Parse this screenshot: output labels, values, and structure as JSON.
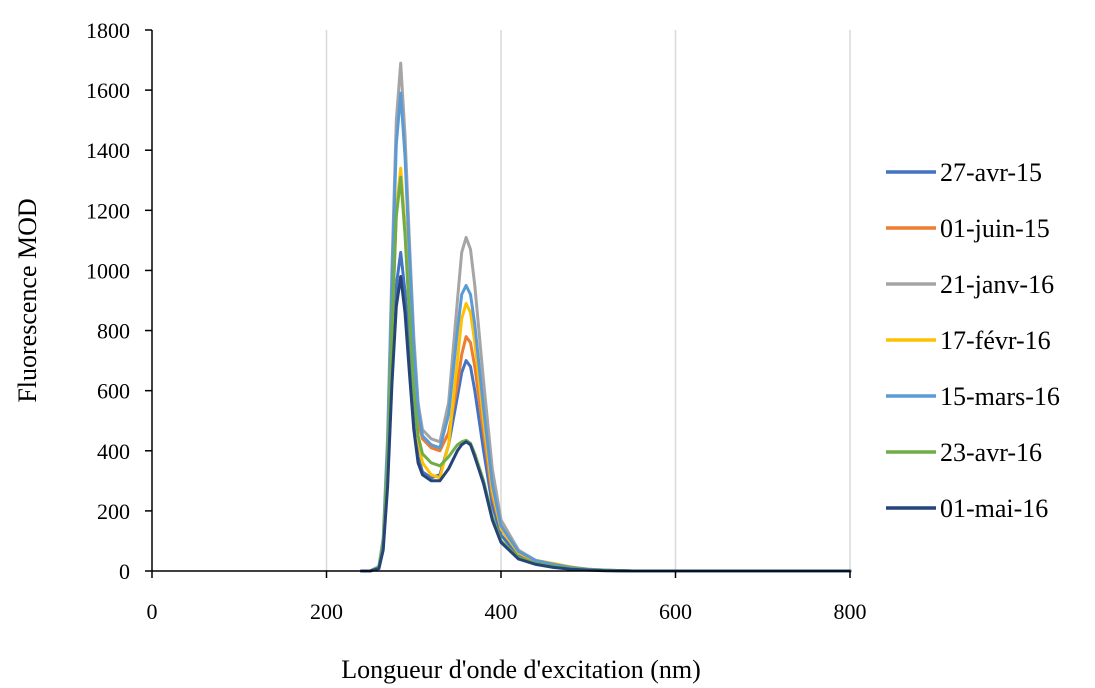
{
  "chart_data": {
    "type": "line",
    "title": "",
    "xlabel": "Longueur d'onde d'excitation (nm)",
    "ylabel": "Fluorescence MOD",
    "xlim": [
      0,
      800
    ],
    "ylim": [
      0,
      1800
    ],
    "xticks": [
      0,
      200,
      400,
      600,
      800
    ],
    "yticks": [
      0,
      200,
      400,
      600,
      800,
      1000,
      1200,
      1400,
      1600,
      1800
    ],
    "grid": "vertical",
    "legend_position": "right",
    "series": [
      {
        "name": "27-avr-15",
        "color": "#4472C4",
        "x": [
          240,
          250,
          260,
          265,
          270,
          275,
          280,
          285,
          290,
          295,
          300,
          305,
          310,
          320,
          330,
          340,
          350,
          355,
          360,
          365,
          370,
          380,
          390,
          400,
          420,
          440,
          460,
          480,
          500,
          520,
          550,
          600,
          650,
          700,
          800
        ],
        "y": [
          0,
          0,
          10,
          80,
          300,
          650,
          950,
          1060,
          930,
          720,
          500,
          380,
          330,
          310,
          320,
          420,
          580,
          660,
          700,
          680,
          600,
          400,
          220,
          120,
          50,
          25,
          15,
          8,
          4,
          2,
          0,
          0,
          0,
          0,
          0
        ]
      },
      {
        "name": "01-juin-15",
        "color": "#ED7D31",
        "x": [
          240,
          250,
          260,
          265,
          270,
          275,
          280,
          285,
          290,
          295,
          300,
          305,
          310,
          320,
          330,
          340,
          350,
          355,
          360,
          365,
          370,
          380,
          390,
          400,
          420,
          440,
          460,
          480,
          500,
          520,
          550,
          600,
          650,
          700,
          800
        ],
        "y": [
          0,
          0,
          10,
          90,
          350,
          800,
          1200,
          1310,
          1150,
          900,
          650,
          500,
          440,
          410,
          400,
          460,
          620,
          720,
          780,
          760,
          680,
          460,
          250,
          140,
          60,
          30,
          20,
          10,
          5,
          2,
          0,
          0,
          0,
          0,
          0
        ]
      },
      {
        "name": "21-janv-16",
        "color": "#A5A5A5",
        "x": [
          240,
          250,
          260,
          265,
          270,
          275,
          280,
          285,
          290,
          295,
          300,
          305,
          310,
          320,
          330,
          340,
          350,
          355,
          360,
          365,
          370,
          380,
          390,
          400,
          420,
          440,
          460,
          480,
          500,
          520,
          550,
          600,
          650,
          700,
          800
        ],
        "y": [
          0,
          0,
          15,
          110,
          450,
          1000,
          1500,
          1690,
          1450,
          1100,
          780,
          560,
          470,
          440,
          430,
          560,
          900,
          1060,
          1110,
          1070,
          950,
          630,
          340,
          170,
          70,
          35,
          25,
          12,
          6,
          3,
          0,
          0,
          0,
          0,
          0
        ]
      },
      {
        "name": "17-févr-16",
        "color": "#FFC000",
        "x": [
          240,
          250,
          260,
          265,
          270,
          275,
          280,
          285,
          290,
          295,
          300,
          305,
          310,
          320,
          330,
          340,
          350,
          355,
          360,
          365,
          370,
          380,
          390,
          400,
          420,
          440,
          460,
          480,
          500,
          520,
          550,
          600,
          650,
          700,
          800
        ],
        "y": [
          0,
          0,
          12,
          90,
          360,
          800,
          1200,
          1340,
          1150,
          880,
          620,
          440,
          360,
          320,
          310,
          420,
          700,
          840,
          890,
          860,
          760,
          500,
          270,
          140,
          60,
          35,
          25,
          14,
          6,
          3,
          0,
          0,
          0,
          0,
          0
        ]
      },
      {
        "name": "15-mars-16",
        "color": "#5B9BD5",
        "x": [
          240,
          250,
          260,
          265,
          270,
          275,
          280,
          285,
          290,
          295,
          300,
          305,
          310,
          320,
          330,
          340,
          350,
          355,
          360,
          365,
          370,
          380,
          390,
          400,
          420,
          440,
          460,
          480,
          500,
          520,
          550,
          600,
          650,
          700,
          800
        ],
        "y": [
          0,
          0,
          14,
          100,
          420,
          950,
          1420,
          1590,
          1380,
          1050,
          740,
          540,
          450,
          420,
          410,
          520,
          800,
          920,
          950,
          920,
          820,
          540,
          290,
          150,
          65,
          35,
          22,
          12,
          6,
          3,
          0,
          0,
          0,
          0,
          0
        ]
      },
      {
        "name": "23-avr-16",
        "color": "#70AD47",
        "x": [
          240,
          250,
          260,
          265,
          270,
          275,
          280,
          285,
          290,
          295,
          300,
          305,
          310,
          320,
          330,
          340,
          350,
          355,
          360,
          365,
          370,
          380,
          390,
          400,
          420,
          440,
          460,
          480,
          500,
          520,
          550,
          600,
          650,
          700,
          800
        ],
        "y": [
          0,
          0,
          12,
          90,
          360,
          800,
          1180,
          1310,
          1120,
          850,
          600,
          450,
          390,
          360,
          350,
          380,
          420,
          430,
          435,
          425,
          390,
          300,
          180,
          100,
          45,
          25,
          15,
          8,
          4,
          2,
          0,
          0,
          0,
          0,
          0
        ]
      },
      {
        "name": "01-mai-16",
        "color": "#264478",
        "x": [
          240,
          250,
          260,
          265,
          270,
          275,
          280,
          285,
          290,
          295,
          300,
          305,
          310,
          320,
          330,
          340,
          350,
          355,
          360,
          365,
          370,
          380,
          390,
          400,
          420,
          440,
          460,
          480,
          500,
          520,
          550,
          600,
          650,
          700,
          800
        ],
        "y": [
          0,
          0,
          8,
          70,
          280,
          620,
          880,
          980,
          860,
          660,
          470,
          360,
          320,
          300,
          300,
          340,
          400,
          420,
          430,
          420,
          380,
          290,
          170,
          95,
          40,
          22,
          12,
          6,
          3,
          1,
          0,
          0,
          0,
          0,
          0
        ]
      }
    ]
  }
}
